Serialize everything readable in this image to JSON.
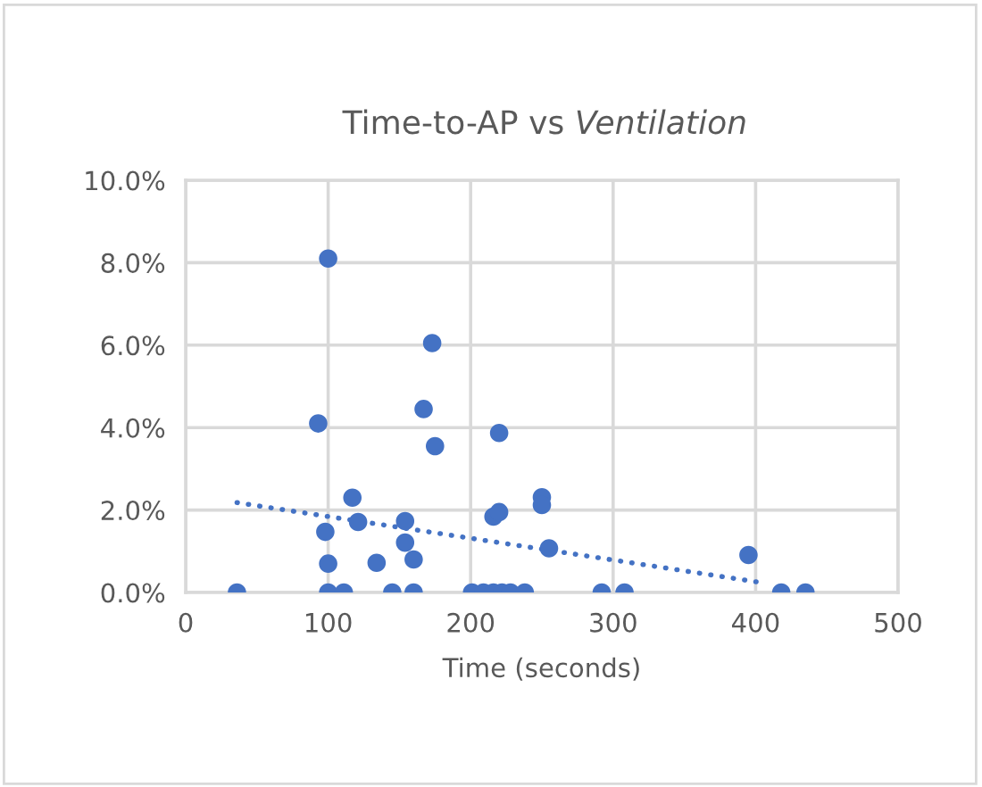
{
  "chart_data": {
    "type": "scatter",
    "title": "Time-to-AP vs Ventilation",
    "xlabel": "Time (seconds)",
    "xlim": [
      0,
      500
    ],
    "xticks": [
      0,
      100,
      200,
      300,
      400,
      500
    ],
    "ylim": [
      0,
      10
    ],
    "yticks": [
      {
        "value": 0,
        "label": "0.0%"
      },
      {
        "value": 2,
        "label": "2.0%"
      },
      {
        "value": 4,
        "label": "4.0%"
      },
      {
        "value": 6,
        "label": "6.0%"
      },
      {
        "value": 8,
        "label": "8.0%"
      },
      {
        "value": 10,
        "label": "10.0%"
      }
    ],
    "grid": true,
    "marker": "circle",
    "series": [
      {
        "color": "#4472c4",
        "x": [
          36,
          100,
          111,
          145,
          160,
          201,
          209,
          216,
          222,
          228,
          238,
          292,
          308,
          418,
          435,
          100,
          93,
          117,
          98,
          121,
          100,
          134,
          154,
          154,
          160,
          173,
          167,
          175,
          220,
          216,
          220,
          250,
          250,
          255,
          395
        ],
        "values": [
          0,
          0,
          0,
          0,
          0,
          0,
          0,
          0,
          0,
          0,
          0,
          0,
          0,
          0,
          0,
          8.1,
          4.1,
          2.3,
          1.47,
          1.71,
          0.7,
          0.72,
          1.73,
          1.21,
          0.8,
          6.05,
          4.45,
          3.55,
          3.87,
          1.84,
          1.95,
          2.31,
          2.12,
          1.07,
          0.91
        ]
      },
      {
        "type": "line",
        "color": "#4472c4",
        "line_style": "dotted",
        "marker": "none",
        "x": [
          36,
          404
        ],
        "values": [
          2.18,
          0.24
        ]
      }
    ]
  }
}
